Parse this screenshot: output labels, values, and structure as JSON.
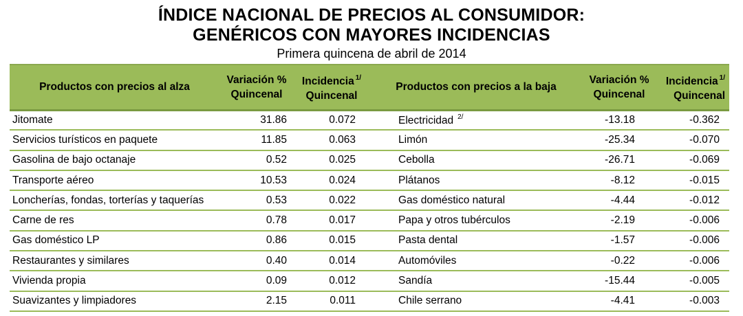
{
  "title_line1": "ÍNDICE NACIONAL DE PRECIOS AL CONSUMIDOR:",
  "title_line2": "GENÉRICOS CON MAYORES INCIDENCIAS",
  "subtitle": "Primera quincena de abril de 2014",
  "headers": {
    "alza": "Productos con precios al alza",
    "baja": "Productos con precios a la baja",
    "variacion_line1": "Variación %",
    "variacion_line2": "Quincenal",
    "incidencia_line1": "Incidencia",
    "incidencia_sup": "1/",
    "incidencia_line2": "Quincenal"
  },
  "rows": [
    {
      "alza": "Jitomate",
      "alza_var": "31.86",
      "alza_inc": "0.072",
      "baja": "Electricidad",
      "baja_sup": "2/",
      "baja_var": "-13.18",
      "baja_inc": "-0.362"
    },
    {
      "alza": "Servicios turísticos en paquete",
      "alza_var": "11.85",
      "alza_inc": "0.063",
      "baja": "Limón",
      "baja_sup": "",
      "baja_var": "-25.34",
      "baja_inc": "-0.070"
    },
    {
      "alza": "Gasolina de bajo octanaje",
      "alza_var": "0.52",
      "alza_inc": "0.025",
      "baja": "Cebolla",
      "baja_sup": "",
      "baja_var": "-26.71",
      "baja_inc": "-0.069"
    },
    {
      "alza": "Transporte aéreo",
      "alza_var": "10.53",
      "alza_inc": "0.024",
      "baja": "Plátanos",
      "baja_sup": "",
      "baja_var": "-8.12",
      "baja_inc": "-0.015"
    },
    {
      "alza": "Loncherías, fondas, torterías y taquerías",
      "alza_var": "0.53",
      "alza_inc": "0.022",
      "baja": "Gas doméstico natural",
      "baja_sup": "",
      "baja_var": "-4.44",
      "baja_inc": "-0.012"
    },
    {
      "alza": "Carne de res",
      "alza_var": "0.78",
      "alza_inc": "0.017",
      "baja": "Papa y otros tubérculos",
      "baja_sup": "",
      "baja_var": "-2.19",
      "baja_inc": "-0.006"
    },
    {
      "alza": "Gas doméstico LP",
      "alza_var": "0.86",
      "alza_inc": "0.015",
      "baja": "Pasta dental",
      "baja_sup": "",
      "baja_var": "-1.57",
      "baja_inc": "-0.006"
    },
    {
      "alza": "Restaurantes y similares",
      "alza_var": "0.40",
      "alza_inc": "0.014",
      "baja": "Automóviles",
      "baja_sup": "",
      "baja_var": "-0.22",
      "baja_inc": "-0.006"
    },
    {
      "alza": "Vivienda propia",
      "alza_var": "0.09",
      "alza_inc": "0.012",
      "baja": "Sandía",
      "baja_sup": "",
      "baja_var": "-15.44",
      "baja_inc": "-0.005"
    },
    {
      "alza": "Suavizantes y limpiadores",
      "alza_var": "2.15",
      "alza_inc": "0.011",
      "baja": "Chile serrano",
      "baja_sup": "",
      "baja_var": "-4.41",
      "baja_inc": "-0.003"
    }
  ],
  "colors": {
    "header_bg": "#9bbb59",
    "rule": "#9bbb59"
  }
}
